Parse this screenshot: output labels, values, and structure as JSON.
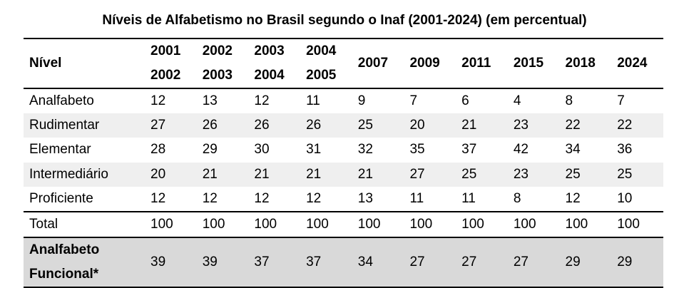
{
  "title": "Níveis de Alfabetismo no Brasil segundo o Inaf (2001-2024) (em percentual)",
  "header": {
    "level_label": "Nível",
    "periods": [
      {
        "line1": "2001",
        "line2": "2002"
      },
      {
        "line1": "2002",
        "line2": "2003"
      },
      {
        "line1": "2003",
        "line2": "2004"
      },
      {
        "line1": "2004",
        "line2": "2005"
      },
      {
        "line1": "2007",
        "line2": ""
      },
      {
        "line1": "2009",
        "line2": ""
      },
      {
        "line1": "2011",
        "line2": ""
      },
      {
        "line1": "2015",
        "line2": ""
      },
      {
        "line1": "2018",
        "line2": ""
      },
      {
        "line1": "2024",
        "line2": ""
      }
    ]
  },
  "rows": [
    {
      "level": "Analfabeto",
      "values": [
        "12",
        "13",
        "12",
        "11",
        "9",
        "7",
        "6",
        "4",
        "8",
        "7"
      ]
    },
    {
      "level": "Rudimentar",
      "values": [
        "27",
        "26",
        "26",
        "26",
        "25",
        "20",
        "21",
        "23",
        "22",
        "22"
      ]
    },
    {
      "level": "Elementar",
      "values": [
        "28",
        "29",
        "30",
        "31",
        "32",
        "35",
        "37",
        "42",
        "34",
        "36"
      ]
    },
    {
      "level": "Intermediário",
      "values": [
        "20",
        "21",
        "21",
        "21",
        "21",
        "27",
        "25",
        "23",
        "25",
        "25"
      ]
    },
    {
      "level": "Proficiente",
      "values": [
        "12",
        "12",
        "12",
        "12",
        "13",
        "11",
        "11",
        "8",
        "12",
        "10"
      ]
    }
  ],
  "total": {
    "level": "Total",
    "values": [
      "100",
      "100",
      "100",
      "100",
      "100",
      "100",
      "100",
      "100",
      "100",
      "100"
    ]
  },
  "functional": {
    "line1": "Analfabeto",
    "line2": "Funcional*",
    "values": [
      "39",
      "39",
      "37",
      "37",
      "34",
      "27",
      "27",
      "27",
      "29",
      "29"
    ]
  }
}
